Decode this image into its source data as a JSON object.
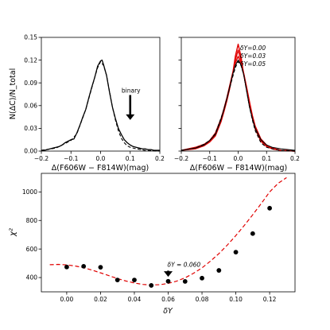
{
  "chart_data": [
    {
      "type": "line",
      "panel": "top-left",
      "xlabel": "Δ(F606W − F814W)(mag)",
      "ylabel": "N(ΔC)/N_total",
      "xlim": [
        -0.2,
        0.2
      ],
      "ylim": [
        0,
        0.15
      ],
      "xticks": [
        -0.2,
        -0.1,
        0.0,
        0.1,
        0.2
      ],
      "xtick_labels": [
        "−0.2",
        "−0.1",
        "0.0",
        "0.1",
        "0.2"
      ],
      "yticks": [
        0.0,
        0.03,
        0.06,
        0.09,
        0.12,
        0.15
      ],
      "ytick_labels": [
        "0.00",
        "0.03",
        "0.06",
        "0.09",
        "0.12",
        "0.15"
      ],
      "series": [
        {
          "style": "solid",
          "color": "#000000",
          "x": [
            -0.2,
            -0.19,
            -0.18,
            -0.17,
            -0.16,
            -0.15,
            -0.14,
            -0.13,
            -0.12,
            -0.11,
            -0.1,
            -0.09,
            -0.08,
            -0.07,
            -0.06,
            -0.05,
            -0.04,
            -0.03,
            -0.02,
            -0.01,
            0.0,
            0.005,
            0.01,
            0.02,
            0.03,
            0.04,
            0.05,
            0.06,
            0.07,
            0.08,
            0.09,
            0.1,
            0.11,
            0.12,
            0.13,
            0.14,
            0.15,
            0.16,
            0.17,
            0.18,
            0.19,
            0.2
          ],
          "y": [
            0.001,
            0.001,
            0.002,
            0.003,
            0.004,
            0.005,
            0.006,
            0.008,
            0.011,
            0.013,
            0.015,
            0.016,
            0.024,
            0.034,
            0.045,
            0.055,
            0.07,
            0.084,
            0.097,
            0.112,
            0.119,
            0.12,
            0.114,
            0.1,
            0.078,
            0.058,
            0.043,
            0.03,
            0.022,
            0.015,
            0.011,
            0.008,
            0.006,
            0.005,
            0.004,
            0.003,
            0.003,
            0.002,
            0.002,
            0.001,
            0.001,
            0.001
          ]
        },
        {
          "style": "dashed",
          "color": "#000000",
          "x": [
            -0.2,
            -0.15,
            -0.1,
            -0.08,
            -0.06,
            -0.05,
            -0.04,
            -0.03,
            -0.02,
            -0.01,
            0.0,
            0.01,
            0.02,
            0.03,
            0.04,
            0.05,
            0.06,
            0.07,
            0.08,
            0.09,
            0.1,
            0.12,
            0.15,
            0.2
          ],
          "y": [
            0.001,
            0.004,
            0.014,
            0.023,
            0.044,
            0.055,
            0.069,
            0.083,
            0.097,
            0.11,
            0.118,
            0.113,
            0.1,
            0.079,
            0.058,
            0.041,
            0.027,
            0.017,
            0.011,
            0.007,
            0.005,
            0.003,
            0.001,
            0.0
          ]
        }
      ],
      "annotations": [
        {
          "text": "binary",
          "x": 0.1,
          "y": 0.075,
          "arrow_to": [
            0.1,
            0.041
          ]
        }
      ]
    },
    {
      "type": "line",
      "panel": "top-right",
      "xlabel": "Δ(F606W − F814W)(mag)",
      "ylabel": "",
      "xlim": [
        -0.2,
        0.2
      ],
      "ylim": [
        0,
        0.15
      ],
      "xticks": [
        -0.2,
        -0.1,
        0.0,
        0.1,
        0.2
      ],
      "xtick_labels": [
        "−0.2",
        "−0.1",
        "0.0",
        "0.1",
        "0.2"
      ],
      "yticks": [
        0.0,
        0.03,
        0.06,
        0.09,
        0.12,
        0.15
      ],
      "legend": [
        "δY=0.00",
        "δY=0.03",
        "δY=0.05"
      ],
      "legend_placement": "top-right",
      "x": [
        -0.2,
        -0.15,
        -0.12,
        -0.1,
        -0.08,
        -0.06,
        -0.05,
        -0.04,
        -0.03,
        -0.02,
        -0.01,
        0.0,
        0.01,
        0.02,
        0.03,
        0.04,
        0.05,
        0.06,
        0.08,
        0.1,
        0.12,
        0.15,
        0.2
      ],
      "series": [
        {
          "name": "δY=0.00",
          "style": "solid",
          "color": "#e00000",
          "y": [
            0.001,
            0.003,
            0.007,
            0.012,
            0.02,
            0.039,
            0.052,
            0.066,
            0.082,
            0.1,
            0.125,
            0.141,
            0.125,
            0.1,
            0.081,
            0.062,
            0.043,
            0.029,
            0.013,
            0.006,
            0.003,
            0.001,
            0.0
          ]
        },
        {
          "name": "δY=0.03",
          "style": "solid",
          "color": "#e00000",
          "y": [
            0.001,
            0.004,
            0.008,
            0.013,
            0.022,
            0.041,
            0.054,
            0.068,
            0.084,
            0.101,
            0.12,
            0.133,
            0.12,
            0.101,
            0.082,
            0.063,
            0.045,
            0.031,
            0.014,
            0.007,
            0.003,
            0.001,
            0.0
          ]
        },
        {
          "name": "δY=0.05",
          "style": "solid",
          "color": "#e00000",
          "y": [
            0.001,
            0.005,
            0.009,
            0.014,
            0.024,
            0.043,
            0.056,
            0.07,
            0.086,
            0.102,
            0.116,
            0.125,
            0.116,
            0.102,
            0.084,
            0.065,
            0.047,
            0.033,
            0.016,
            0.008,
            0.004,
            0.001,
            0.0
          ]
        },
        {
          "name": "",
          "style": "solid",
          "color": "#000000",
          "y": [
            0.001,
            0.004,
            0.008,
            0.014,
            0.022,
            0.042,
            0.055,
            0.069,
            0.084,
            0.1,
            0.113,
            0.12,
            0.114,
            0.1,
            0.079,
            0.058,
            0.043,
            0.03,
            0.015,
            0.008,
            0.005,
            0.003,
            0.001
          ]
        },
        {
          "name": "",
          "style": "dashed",
          "color": "#000000",
          "y": [
            0.001,
            0.004,
            0.009,
            0.014,
            0.023,
            0.044,
            0.055,
            0.069,
            0.083,
            0.097,
            0.11,
            0.118,
            0.113,
            0.1,
            0.079,
            0.058,
            0.041,
            0.027,
            0.011,
            0.005,
            0.003,
            0.001,
            0.0
          ]
        }
      ]
    },
    {
      "type": "scatter",
      "panel": "bottom",
      "xlabel": "δY",
      "ylabel": "χ²",
      "xlim": [
        -0.015,
        0.135
      ],
      "ylim": [
        300,
        1130
      ],
      "xticks": [
        0.0,
        0.02,
        0.04,
        0.06,
        0.08,
        0.1,
        0.12
      ],
      "xtick_labels": [
        "0.00",
        "0.02",
        "0.04",
        "0.06",
        "0.08",
        "0.10",
        "0.12"
      ],
      "yticks": [
        400,
        600,
        800,
        1000
      ],
      "ytick_labels": [
        "400",
        "600",
        "800",
        "1000"
      ],
      "points": {
        "x": [
          0.0,
          0.01,
          0.02,
          0.03,
          0.04,
          0.05,
          0.06,
          0.07,
          0.08,
          0.09,
          0.1,
          0.11,
          0.12
        ],
        "y": [
          474,
          479,
          472,
          383,
          383,
          345,
          374,
          373,
          396,
          450,
          578,
          708,
          886
        ]
      },
      "fit": {
        "style": "dashed",
        "color": "#e00000",
        "x": [
          -0.01,
          -0.005,
          0.0,
          0.005,
          0.01,
          0.015,
          0.02,
          0.025,
          0.03,
          0.035,
          0.04,
          0.045,
          0.05,
          0.055,
          0.06,
          0.065,
          0.07,
          0.075,
          0.08,
          0.085,
          0.09,
          0.095,
          0.1,
          0.105,
          0.11,
          0.115,
          0.12,
          0.125,
          0.13
        ],
        "y": [
          490,
          492,
          489,
          481,
          469,
          452,
          433,
          413,
          393,
          376,
          362,
          352,
          348,
          350,
          359,
          375,
          398,
          430,
          468,
          515,
          568,
          628,
          694,
          765,
          840,
          918,
          1000,
          1060,
          1100
        ]
      },
      "annotations": [
        {
          "text": "δY = 0.060",
          "x": 0.06,
          "y": 465,
          "arrow_to": [
            0.06,
            405
          ]
        }
      ]
    }
  ]
}
